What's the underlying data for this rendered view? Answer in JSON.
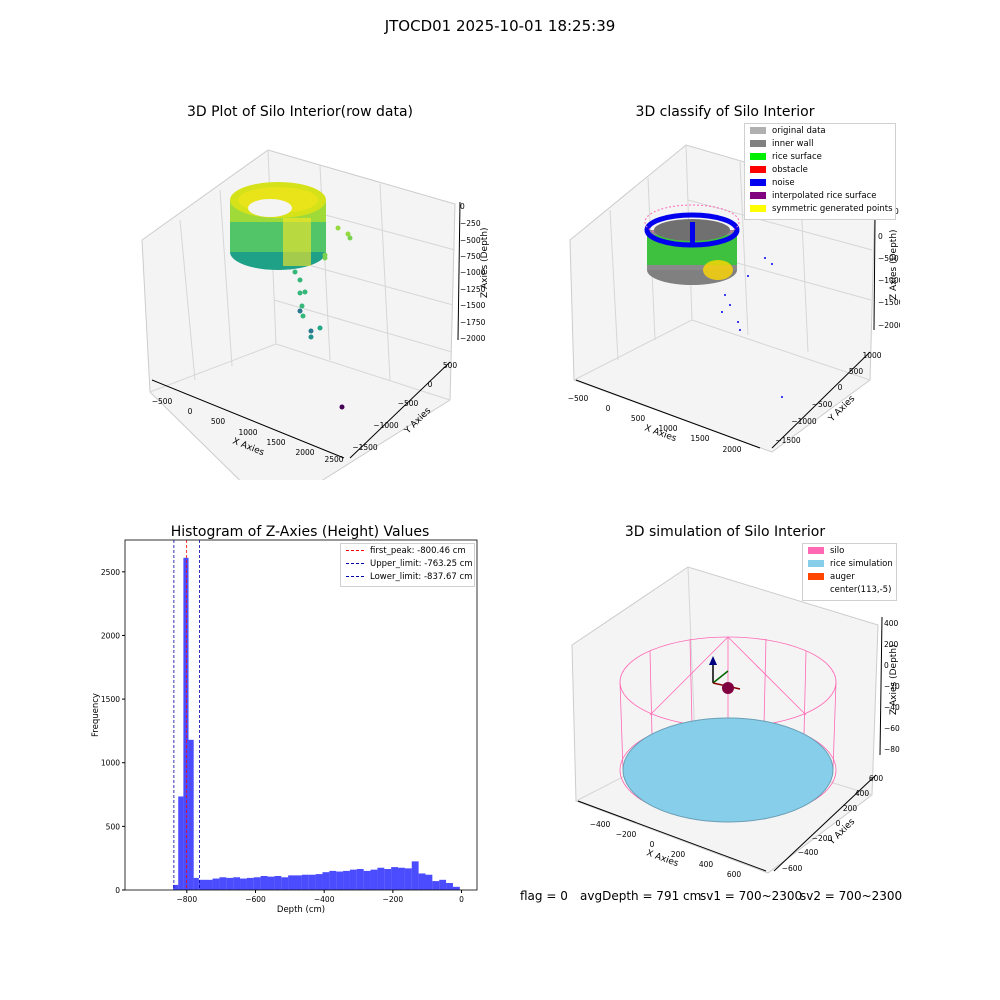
{
  "figure": {
    "suptitle": "JTOCD01 2025-10-01 18:25:39",
    "footer": {
      "flag": "flag = 0",
      "avg_depth": "avgDepth = 791 cm",
      "sv1": "sv1 = 700~2300",
      "sv2": "sv2 = 700~2300"
    }
  },
  "panels": {
    "raw": {
      "title": "3D Plot of Silo Interior(row data)",
      "xlabel": "X Axies",
      "ylabel": "Y Axies",
      "zlabel": "Z Axies (Depth)",
      "x_ticks": [
        "−500",
        "0",
        "500",
        "1000",
        "1500",
        "2000",
        "2500"
      ],
      "y_ticks": [
        "500",
        "0",
        "−500",
        "−1000",
        "−1500"
      ],
      "z_ticks": [
        "0",
        "−250",
        "−500",
        "−750",
        "−1000",
        "−1250",
        "−1500",
        "−1750",
        "−2000"
      ]
    },
    "classify": {
      "title": "3D classify of Silo Interior",
      "xlabel": "X Axies",
      "ylabel": "Y Axies",
      "zlabel": "Z Axies (Depth)",
      "x_ticks": [
        "−500",
        "0",
        "500",
        "1000",
        "1500",
        "2000"
      ],
      "y_ticks": [
        "1000",
        "500",
        "0",
        "−500",
        "−1000",
        "−1500"
      ],
      "z_ticks": [
        "0",
        "−500",
        "−1000",
        "−1500",
        "−2000"
      ],
      "z_top_partial": "0",
      "legend": [
        {
          "label": "original data",
          "color": "#b0b0b0"
        },
        {
          "label": "inner wall",
          "color": "#808080"
        },
        {
          "label": "rice surface",
          "color": "#00ee00"
        },
        {
          "label": "obstacle",
          "color": "#ff0000"
        },
        {
          "label": "noise",
          "color": "#0000ee"
        },
        {
          "label": "interpolated rice surface",
          "color": "#800080"
        },
        {
          "label": "symmetric generated points",
          "color": "#ffff00"
        }
      ]
    },
    "simulation": {
      "title": "3D simulation of Silo Interior",
      "xlabel": "X Axies",
      "ylabel": "Y Axies",
      "zlabel": "Z Axies (Depth)",
      "x_ticks": [
        "−400",
        "−200",
        "0",
        "200",
        "400",
        "600"
      ],
      "y_ticks": [
        "600",
        "400",
        "200",
        "0",
        "−200",
        "−400",
        "−600"
      ],
      "z_ticks": [
        "400",
        "200",
        "0",
        "−200",
        "−400",
        "−600",
        "−800"
      ],
      "legend": [
        {
          "label": "silo",
          "color": "#ff69b4"
        },
        {
          "label": "rice simulation",
          "color": "#87ceeb"
        },
        {
          "label": "auger",
          "color": "#ff4500"
        },
        {
          "label": "center(113,-5)",
          "color": ""
        }
      ]
    }
  },
  "chart_data": {
    "type": "bar",
    "title": "Histogram of Z-Axies (Height) Values",
    "xlabel": "Depth (cm)",
    "ylabel": "Frequency",
    "xlim": [
      -980,
      45
    ],
    "ylim": [
      0,
      2750
    ],
    "x_ticks": [
      -800,
      -600,
      -400,
      -200,
      0
    ],
    "y_ticks": [
      0,
      500,
      1000,
      1500,
      2000,
      2500
    ],
    "bar_color": "#0000ff",
    "bins": [
      {
        "x0": -840,
        "x1": -825,
        "count": 40
      },
      {
        "x0": -825,
        "x1": -810,
        "count": 735
      },
      {
        "x0": -810,
        "x1": -795,
        "count": 2610
      },
      {
        "x0": -795,
        "x1": -780,
        "count": 1180
      },
      {
        "x0": -780,
        "x1": -765,
        "count": 95
      },
      {
        "x0": -765,
        "x1": -725,
        "count": 80
      },
      {
        "x0": -725,
        "x1": -705,
        "count": 90
      },
      {
        "x0": -705,
        "x1": -685,
        "count": 100
      },
      {
        "x0": -685,
        "x1": -665,
        "count": 95
      },
      {
        "x0": -665,
        "x1": -645,
        "count": 100
      },
      {
        "x0": -645,
        "x1": -625,
        "count": 90
      },
      {
        "x0": -625,
        "x1": -605,
        "count": 95
      },
      {
        "x0": -605,
        "x1": -585,
        "count": 100
      },
      {
        "x0": -585,
        "x1": -565,
        "count": 110
      },
      {
        "x0": -565,
        "x1": -545,
        "count": 105
      },
      {
        "x0": -545,
        "x1": -525,
        "count": 110
      },
      {
        "x0": -525,
        "x1": -505,
        "count": 100
      },
      {
        "x0": -505,
        "x1": -485,
        "count": 115
      },
      {
        "x0": -485,
        "x1": -465,
        "count": 115
      },
      {
        "x0": -465,
        "x1": -445,
        "count": 120
      },
      {
        "x0": -445,
        "x1": -425,
        "count": 120
      },
      {
        "x0": -425,
        "x1": -405,
        "count": 125
      },
      {
        "x0": -405,
        "x1": -385,
        "count": 140
      },
      {
        "x0": -385,
        "x1": -365,
        "count": 150
      },
      {
        "x0": -365,
        "x1": -345,
        "count": 145
      },
      {
        "x0": -345,
        "x1": -325,
        "count": 150
      },
      {
        "x0": -325,
        "x1": -305,
        "count": 160
      },
      {
        "x0": -305,
        "x1": -285,
        "count": 165
      },
      {
        "x0": -285,
        "x1": -265,
        "count": 150
      },
      {
        "x0": -265,
        "x1": -245,
        "count": 160
      },
      {
        "x0": -245,
        "x1": -225,
        "count": 175
      },
      {
        "x0": -225,
        "x1": -205,
        "count": 165
      },
      {
        "x0": -205,
        "x1": -185,
        "count": 180
      },
      {
        "x0": -185,
        "x1": -165,
        "count": 175
      },
      {
        "x0": -165,
        "x1": -145,
        "count": 170
      },
      {
        "x0": -145,
        "x1": -125,
        "count": 225
      },
      {
        "x0": -125,
        "x1": -105,
        "count": 130
      },
      {
        "x0": -105,
        "x1": -85,
        "count": 120
      },
      {
        "x0": -85,
        "x1": -65,
        "count": 70
      },
      {
        "x0": -65,
        "x1": -45,
        "count": 80
      },
      {
        "x0": -45,
        "x1": -25,
        "count": 55
      },
      {
        "x0": -25,
        "x1": -5,
        "count": 25
      }
    ],
    "vlines": [
      {
        "name": "first_peak: -800.46 cm",
        "x": -800.46,
        "color": "#ff0000"
      },
      {
        "name": "Upper_limit: -763.25 cm",
        "x": -763.25,
        "color": "#0000aa"
      },
      {
        "name": "Lower_limit: -837.67 cm",
        "x": -837.67,
        "color": "#0000aa"
      }
    ]
  }
}
